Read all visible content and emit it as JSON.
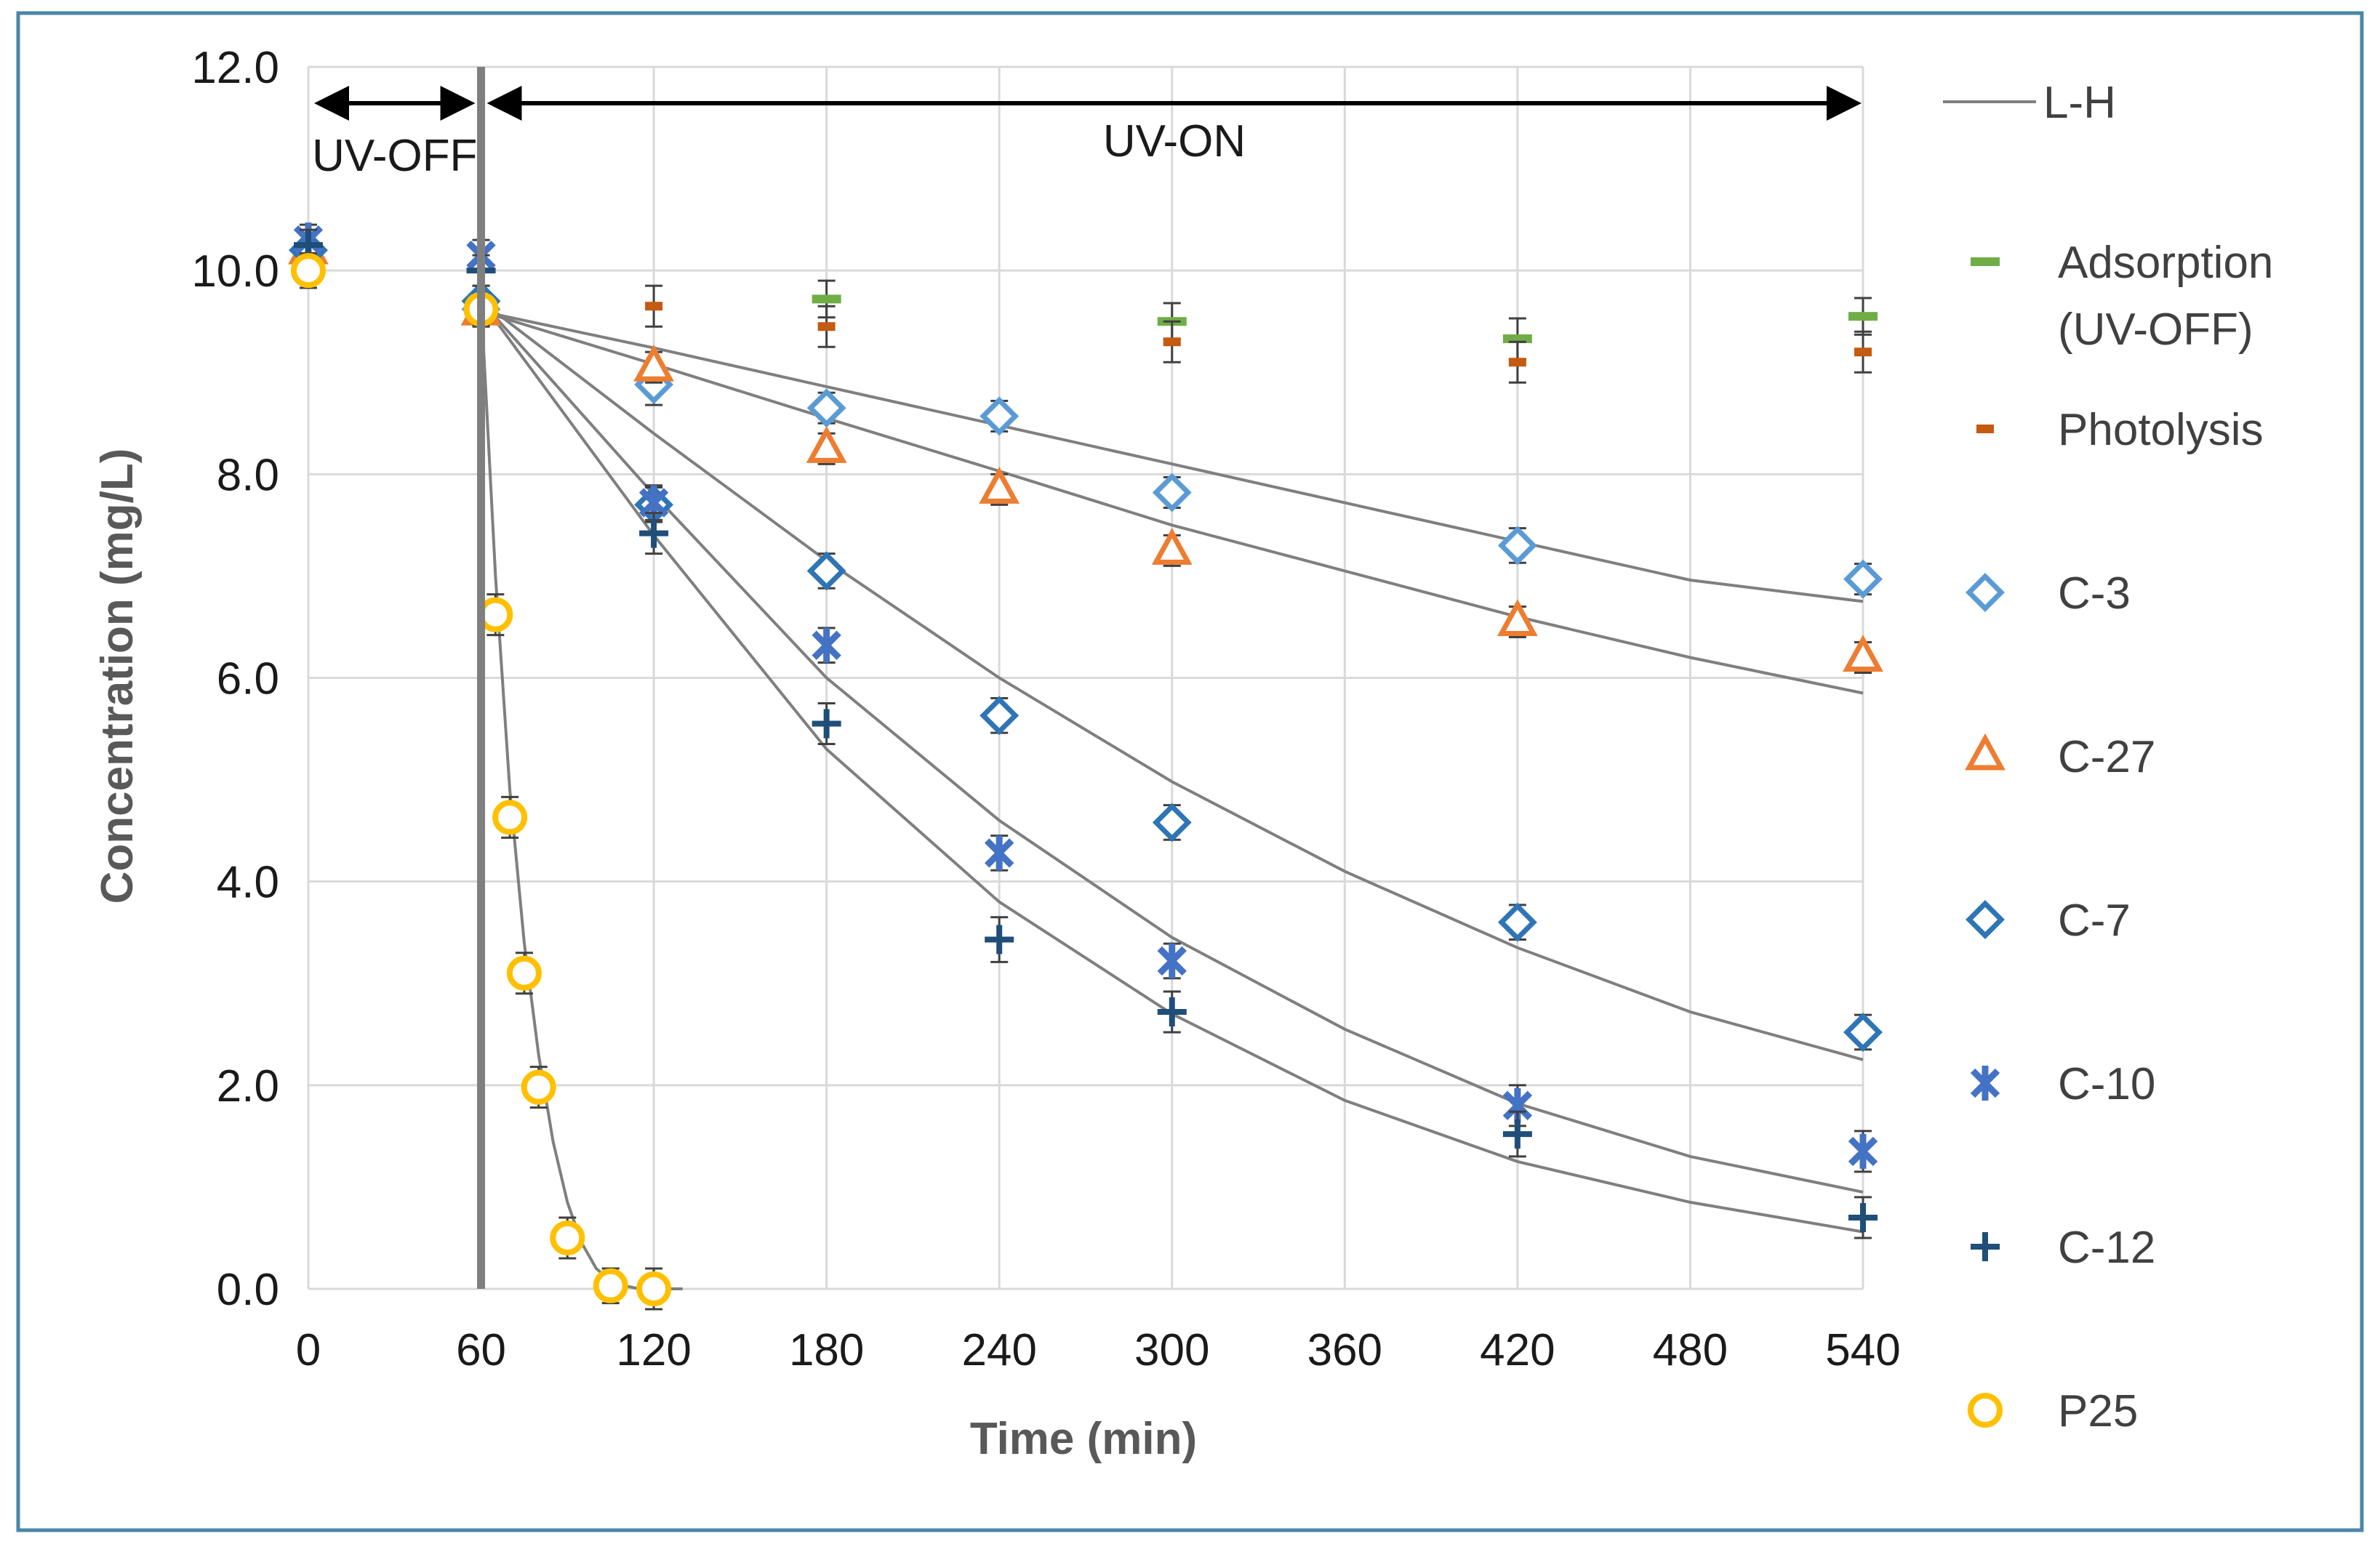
{
  "chart_data": {
    "type": "scatter",
    "xlabel": "Time (min)",
    "ylabel": "Concentration (mg/L)",
    "xlim": [
      0,
      540
    ],
    "ylim": [
      0,
      12
    ],
    "x_ticks": [
      "0",
      "60",
      "120",
      "180",
      "240",
      "300",
      "360",
      "420",
      "480",
      "540"
    ],
    "y_ticks": [
      "0.0",
      "2.0",
      "4.0",
      "6.0",
      "8.0",
      "10.0",
      "12.0"
    ],
    "grid": true,
    "legend_position": "right",
    "annotations": {
      "uv_off": "UV-OFF",
      "uv_on": "UV-ON",
      "uv_switch_time": 60
    },
    "series": [
      {
        "name": "L-H",
        "kind": "fit",
        "color": "#7f7f7f",
        "curves": [
          {
            "label": "C-3 fit",
            "x": [
              60,
              120,
              180,
              240,
              300,
              360,
              420,
              480,
              540
            ],
            "y": [
              9.6,
              9.24,
              8.86,
              8.48,
              8.1,
              7.72,
              7.34,
              6.96,
              6.75
            ]
          },
          {
            "label": "C-27 fit",
            "x": [
              60,
              120,
              180,
              240,
              300,
              360,
              420,
              480,
              540
            ],
            "y": [
              9.6,
              9.08,
              8.55,
              8.03,
              7.5,
              7.05,
              6.6,
              6.2,
              5.85
            ]
          },
          {
            "label": "C-7 fit",
            "x": [
              60,
              120,
              180,
              240,
              300,
              360,
              420,
              480,
              540
            ],
            "y": [
              9.7,
              8.4,
              7.15,
              6.0,
              4.98,
              4.1,
              3.35,
              2.72,
              2.25
            ]
          },
          {
            "label": "C-10 fit",
            "x": [
              60,
              120,
              180,
              240,
              300,
              360,
              420,
              480,
              540
            ],
            "y": [
              9.7,
              7.8,
              6.0,
              4.6,
              3.45,
              2.55,
              1.82,
              1.3,
              0.95
            ]
          },
          {
            "label": "C-12 fit",
            "x": [
              60,
              120,
              180,
              240,
              300,
              360,
              420,
              480,
              540
            ],
            "y": [
              9.7,
              7.4,
              5.3,
              3.8,
              2.7,
              1.85,
              1.25,
              0.85,
              0.56
            ]
          },
          {
            "label": "P25 fit",
            "x": [
              60,
              65,
              70,
              75,
              80,
              85,
              90,
              95,
              100,
              105,
              110,
              115,
              120,
              130
            ],
            "y": [
              9.7,
              7.0,
              4.9,
              3.4,
              2.3,
              1.45,
              0.85,
              0.45,
              0.2,
              0.08,
              0.03,
              0.0,
              0.0,
              0.0
            ]
          }
        ]
      },
      {
        "name": "Adsorption (UV-OFF)",
        "label_lines": [
          "Adsorption",
          "(UV-OFF)"
        ],
        "marker": "dash",
        "color": "#70ad47",
        "x": [
          180,
          300,
          420,
          540
        ],
        "y": [
          9.72,
          9.5,
          9.33,
          9.55
        ],
        "err": [
          0.18,
          0.18,
          0.2,
          0.18
        ]
      },
      {
        "name": "Photolysis",
        "marker": "smalldash",
        "color": "#c55a11",
        "x": [
          120,
          180,
          300,
          420,
          540
        ],
        "y": [
          9.65,
          9.45,
          9.3,
          9.1,
          9.2
        ],
        "err": [
          0.2,
          0.2,
          0.2,
          0.2,
          0.2
        ]
      },
      {
        "name": "C-3",
        "marker": "diamond",
        "color": "#5b9bd5",
        "x": [
          0,
          60,
          120,
          180,
          240,
          300,
          420,
          540
        ],
        "y": [
          10.2,
          9.62,
          8.88,
          8.65,
          8.57,
          7.82,
          7.3,
          6.97
        ],
        "err": [
          0.15,
          0.15,
          0.2,
          0.15,
          0.15,
          0.15,
          0.17,
          0.15
        ]
      },
      {
        "name": "C-27",
        "marker": "triangle",
        "color": "#ed7d31",
        "x": [
          0,
          60,
          120,
          180,
          240,
          300,
          420,
          540
        ],
        "y": [
          10.2,
          9.6,
          9.05,
          8.25,
          7.85,
          7.25,
          6.55,
          6.2
        ],
        "err": [
          0.15,
          0.15,
          0.15,
          0.15,
          0.15,
          0.15,
          0.15,
          0.15
        ]
      },
      {
        "name": "C-7",
        "marker": "diamond",
        "color": "#2e75b6",
        "x": [
          0,
          60,
          120,
          180,
          240,
          300,
          420,
          540
        ],
        "y": [
          10.2,
          9.7,
          7.7,
          7.05,
          5.63,
          4.58,
          3.6,
          2.52
        ],
        "err": [
          0.15,
          0.15,
          0.17,
          0.17,
          0.17,
          0.17,
          0.17,
          0.17
        ]
      },
      {
        "name": "C-10",
        "marker": "star",
        "color": "#4472c4",
        "x": [
          0,
          60,
          120,
          180,
          240,
          300,
          420,
          540
        ],
        "y": [
          10.3,
          10.15,
          7.72,
          6.32,
          4.28,
          3.22,
          1.8,
          1.35
        ],
        "err": [
          0.15,
          0.15,
          0.17,
          0.17,
          0.17,
          0.17,
          0.2,
          0.2
        ]
      },
      {
        "name": "C-12",
        "marker": "plus",
        "color": "#1f4e79",
        "x": [
          0,
          60,
          120,
          180,
          240,
          300,
          420,
          540
        ],
        "y": [
          10.25,
          10.0,
          7.42,
          5.55,
          3.43,
          2.72,
          1.52,
          0.7
        ],
        "err": [
          0.15,
          0.15,
          0.2,
          0.2,
          0.22,
          0.2,
          0.22,
          0.2
        ]
      },
      {
        "name": "P25",
        "marker": "circle",
        "color": "#ffc000",
        "x": [
          0,
          60,
          65,
          70,
          75,
          80,
          90,
          105,
          120
        ],
        "y": [
          10.0,
          9.62,
          6.62,
          4.63,
          3.1,
          1.98,
          0.5,
          0.03,
          0.0
        ],
        "err": [
          0.17,
          0.15,
          0.2,
          0.2,
          0.2,
          0.2,
          0.2,
          0.17,
          0.2
        ]
      }
    ]
  }
}
